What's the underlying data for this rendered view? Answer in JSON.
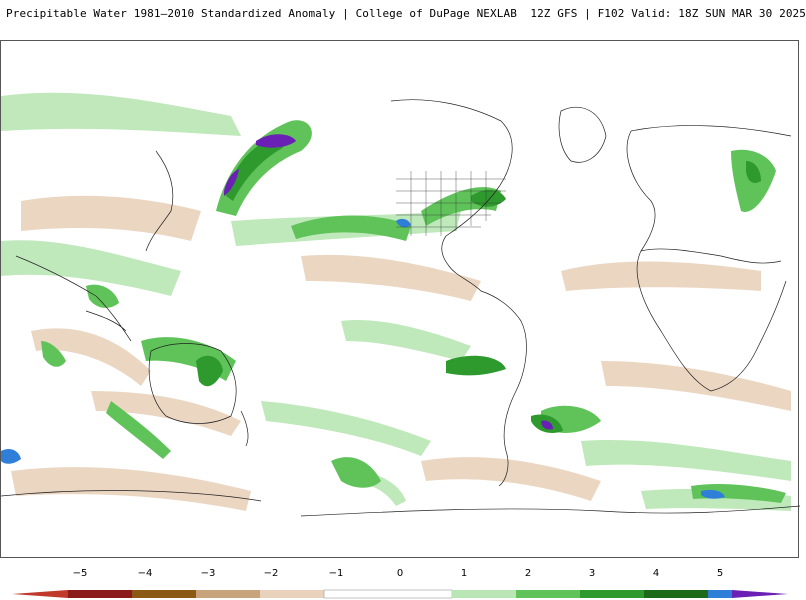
{
  "header": {
    "title": "Precipitable Water 1981–2010 Standardized Anomaly | College of DuPage NEXLAB  12Z GFS | F102 Valid: 18Z SUN MAR 30 2025"
  },
  "map": {
    "projection": "global cylindrical",
    "field": "precipitable water standardized anomaly"
  },
  "colorbar": {
    "ticks": [
      "−5",
      "−4",
      "−3",
      "−2",
      "−1",
      "0",
      "1",
      "2",
      "3",
      "4",
      "5"
    ],
    "colors": {
      "m5": "#c0392b",
      "m4": "#8b1a1a",
      "m3": "#8b5a14",
      "m2": "#c8a47c",
      "m1": "#e9d2bc",
      "zero": "#ffffff",
      "p1": "#b9e6b4",
      "p2": "#5fc35a",
      "p3": "#2e9a2e",
      "p4": "#1a6a1a",
      "p5": "#2f7fd9",
      "top": "#6a1fb5"
    }
  }
}
